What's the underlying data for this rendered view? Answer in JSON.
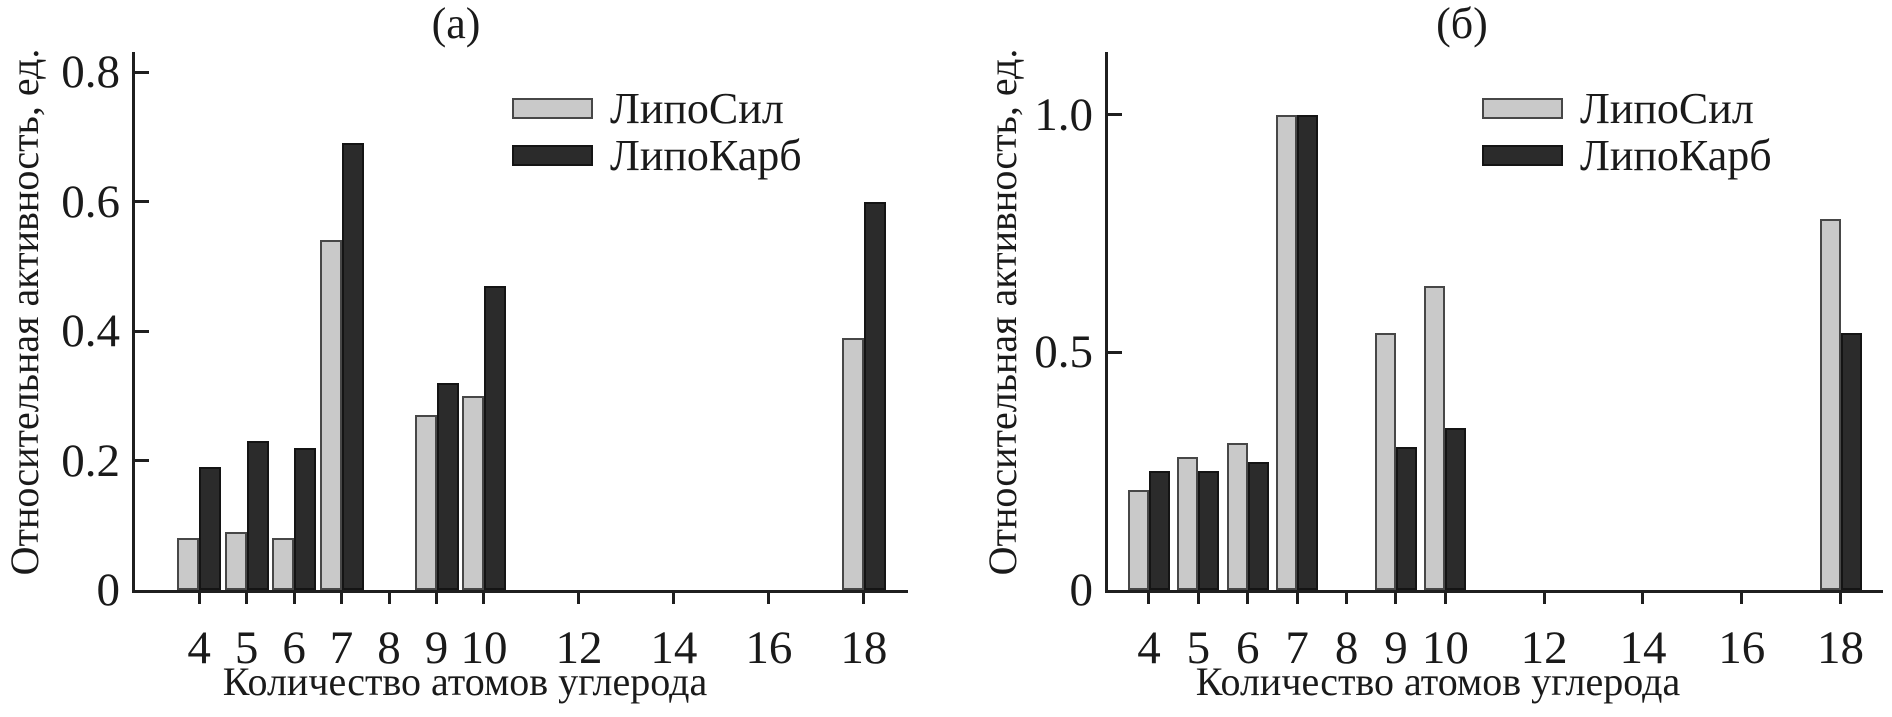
{
  "figure_title": "",
  "colors": {
    "axis": "#1f1f1f",
    "text": "#1a1a1a",
    "series_gray_fill": "#c9c9c9",
    "series_gray_border": "#474747",
    "series_black_fill": "#2b2b2b",
    "series_black_border": "#141414",
    "background": "#ffffff"
  },
  "chart_data": [
    {
      "type": "bar",
      "panel_label": "(а)",
      "xlabel": "Количество атомов углерода",
      "ylabel": "Относительная активность, ед.",
      "legend_position": "top-right-inside",
      "grid": false,
      "categories": [
        4,
        5,
        6,
        7,
        9,
        10,
        18
      ],
      "series": [
        {
          "name": "ЛипоСил",
          "color": "#c9c9c9",
          "border": "#474747",
          "values": [
            0.08,
            0.09,
            0.08,
            0.54,
            0.27,
            0.3,
            0.39
          ]
        },
        {
          "name": "ЛипоКарб",
          "color": "#2b2b2b",
          "border": "#141414",
          "values": [
            0.19,
            0.23,
            0.22,
            0.69,
            0.32,
            0.47,
            0.6
          ]
        }
      ],
      "xticks": [
        4,
        5,
        6,
        7,
        8,
        9,
        10,
        12,
        14,
        16,
        18
      ],
      "yticks": [
        0,
        0.2,
        0.4,
        0.6,
        0.8
      ],
      "ytick_labels": [
        "0",
        "0.2",
        "0.4",
        "0.6",
        "0.8"
      ],
      "ylim": [
        0,
        0.831
      ],
      "xlim": [
        2.65,
        18.93
      ]
    },
    {
      "type": "bar",
      "panel_label": "(б)",
      "xlabel": "Количество атомов углерода",
      "ylabel": "Относительная активность, ед.",
      "legend_position": "top-right-inside",
      "grid": false,
      "categories": [
        4,
        5,
        6,
        7,
        9,
        10,
        18
      ],
      "series": [
        {
          "name": "ЛипоСил",
          "color": "#c9c9c9",
          "border": "#474747",
          "values": [
            0.21,
            0.28,
            0.31,
            1.0,
            0.54,
            0.64,
            0.78
          ]
        },
        {
          "name": "ЛипоКарб",
          "color": "#2b2b2b",
          "border": "#141414",
          "values": [
            0.25,
            0.25,
            0.27,
            1.0,
            0.3,
            0.34,
            0.54
          ]
        }
      ],
      "xticks": [
        4,
        5,
        6,
        7,
        8,
        9,
        10,
        12,
        14,
        16,
        18
      ],
      "yticks": [
        0,
        0.5,
        1.0
      ],
      "ytick_labels": [
        "0",
        "0.5",
        "1.0"
      ],
      "ylim": [
        0,
        1.132
      ],
      "xlim": [
        3.17,
        18.86
      ]
    }
  ]
}
